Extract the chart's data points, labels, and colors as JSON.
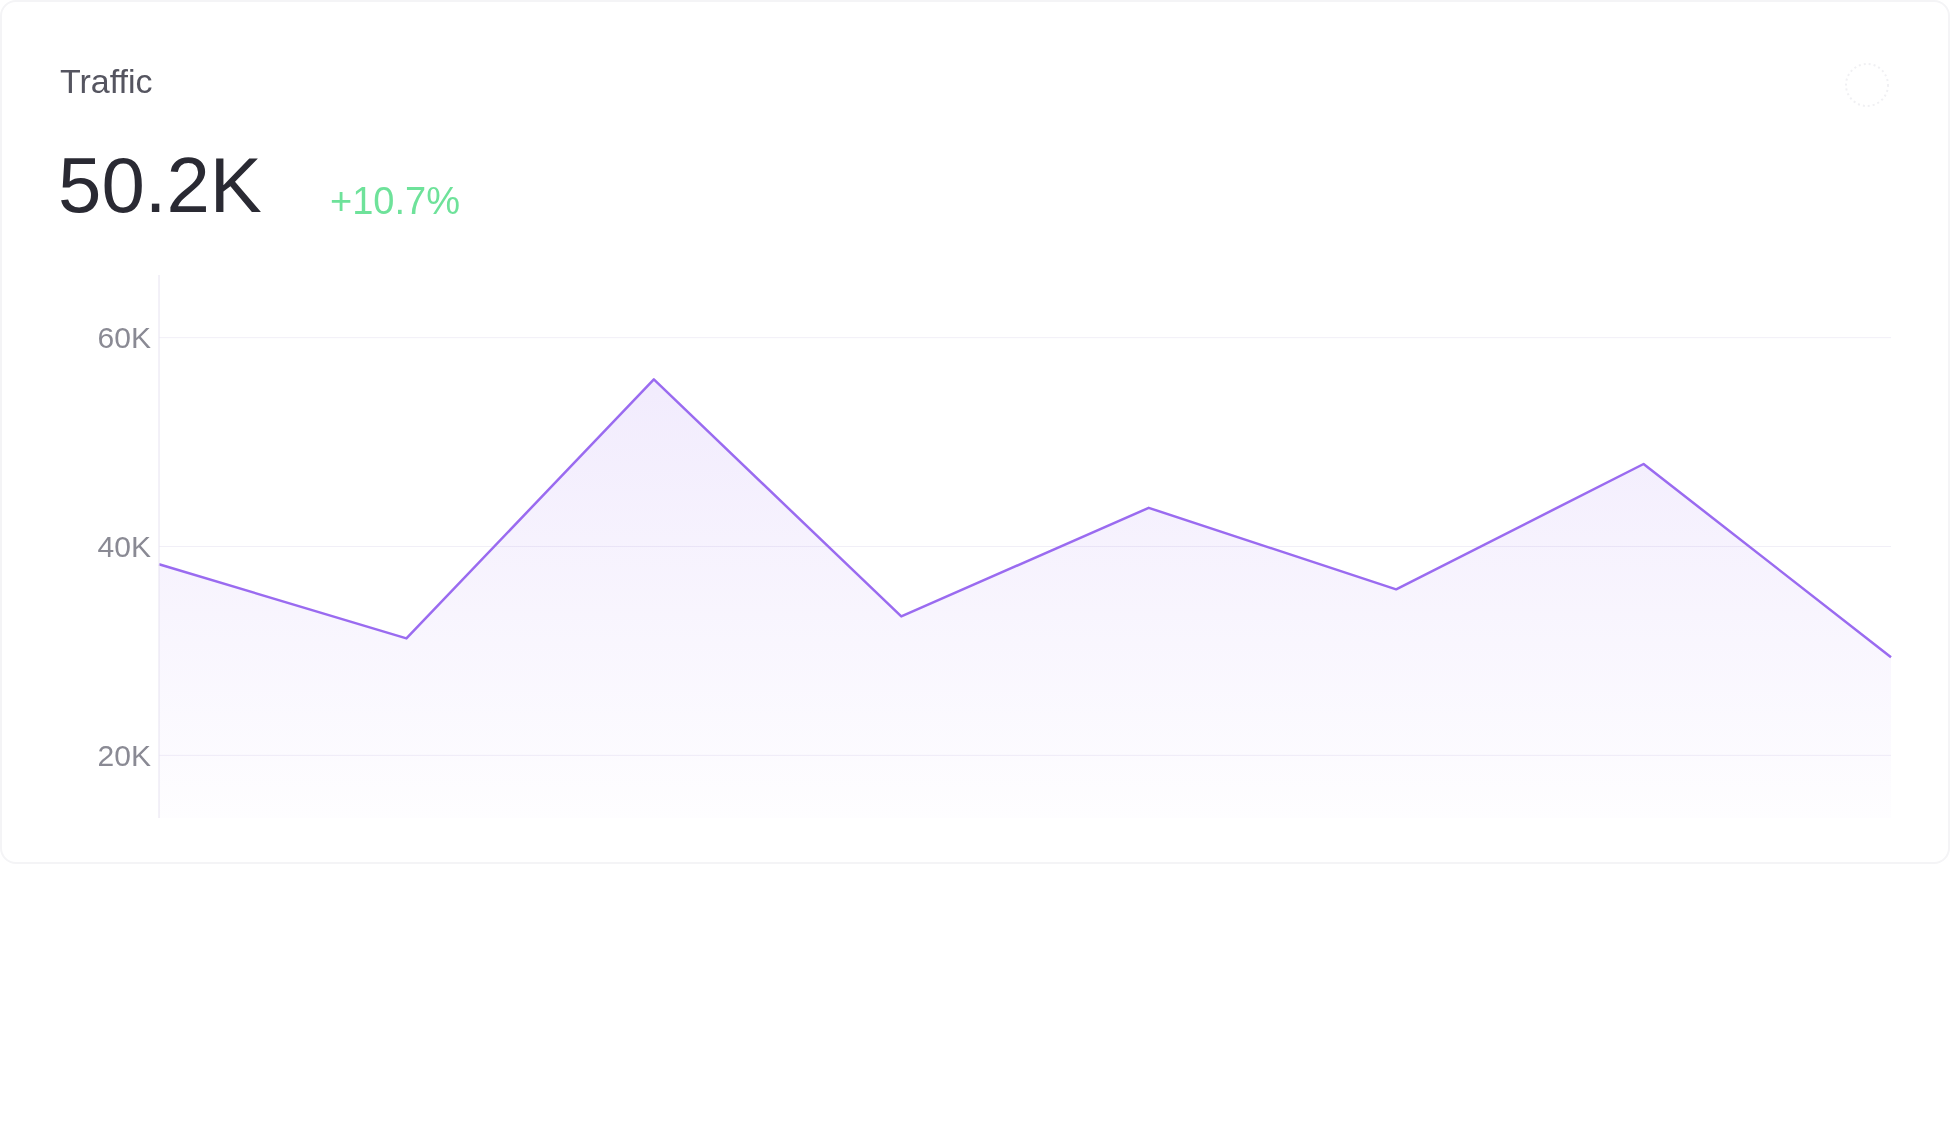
{
  "chart_data": {
    "type": "area",
    "title": "Traffic",
    "subtitle": "50.2K",
    "annotations": [
      "+10.7%"
    ],
    "categories": [
      null,
      null,
      null,
      null,
      null,
      null,
      null,
      null
    ],
    "series": [
      {
        "color": "#9a6bf0",
        "values": [
          38300,
          31200,
          56000,
          33300,
          43700,
          35900,
          47900,
          29400
        ]
      }
    ],
    "ylim": [
      14000,
      66000
    ],
    "yticks": [
      {
        "value": 20000,
        "label": "20K"
      },
      {
        "value": 40000,
        "label": "40K"
      },
      {
        "value": 60000,
        "label": "60K"
      }
    ],
    "grid": "y"
  }
}
